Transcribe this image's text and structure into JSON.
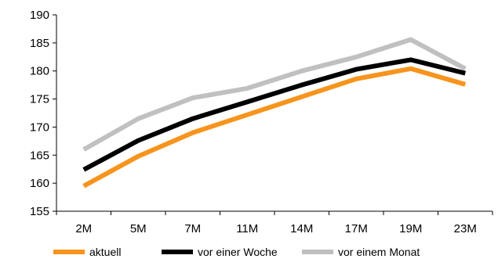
{
  "chart_data": {
    "type": "line",
    "categories": [
      "2M",
      "5M",
      "7M",
      "11M",
      "14M",
      "17M",
      "19M",
      "23M"
    ],
    "ylim": [
      155,
      190
    ],
    "yticks": [
      155,
      160,
      165,
      170,
      175,
      180,
      185,
      190
    ],
    "grid": false,
    "legend_position": "bottom",
    "series": [
      {
        "name": "aktuell",
        "color": "#f7941d",
        "values": [
          159.5,
          164.8,
          169.0,
          172.2,
          175.4,
          178.6,
          180.4,
          177.6
        ]
      },
      {
        "name": "vor einer Woche",
        "color": "#000000",
        "values": [
          162.4,
          167.6,
          171.5,
          174.5,
          177.5,
          180.3,
          182.0,
          179.6
        ]
      },
      {
        "name": "vor einem Monat",
        "color": "#c0c0c0",
        "values": [
          166.0,
          171.5,
          175.2,
          176.9,
          180.0,
          182.5,
          185.6,
          180.4
        ]
      }
    ]
  }
}
